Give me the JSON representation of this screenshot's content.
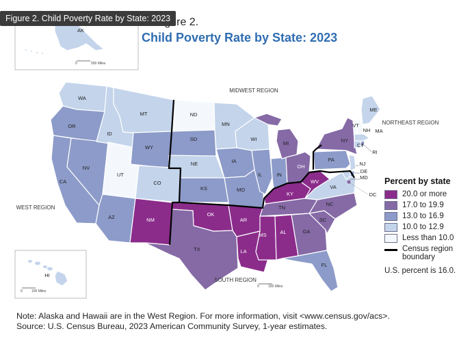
{
  "tooltip": "Figure 2. Child Poverty Rate by State: 2023",
  "figure_label": "Figure 2.",
  "title": "Child Poverty Rate by State: 2023",
  "colors": {
    "c20": "#8b2c8b",
    "c17": "#856aa6",
    "c13": "#8c9bc9",
    "c10": "#c3d4eb",
    "c0": "#f4f8fc",
    "boundary": "#000000",
    "title": "#2f6db1"
  },
  "legend": {
    "title": "Percent by state",
    "items": [
      {
        "label": "20.0 or more",
        "class": "c20"
      },
      {
        "label": "17.0 to 19.9",
        "class": "c17"
      },
      {
        "label": "13.0 to 16.9",
        "class": "c13"
      },
      {
        "label": "10.0 to 12.9",
        "class": "c10"
      },
      {
        "label": "Less than 10.0",
        "class": "c0"
      }
    ],
    "boundary_label": "Census region boundary",
    "us_percent": "U.S. percent is 16.0."
  },
  "regions": [
    "MIDWEST REGION",
    "NORTHEAST REGION",
    "WEST REGION",
    "SOUTH REGION"
  ],
  "states": [
    {
      "abbr": "WA",
      "class": "c10"
    },
    {
      "abbr": "OR",
      "class": "c13"
    },
    {
      "abbr": "CA",
      "class": "c13"
    },
    {
      "abbr": "NV",
      "class": "c13"
    },
    {
      "abbr": "ID",
      "class": "c10"
    },
    {
      "abbr": "MT",
      "class": "c10"
    },
    {
      "abbr": "WY",
      "class": "c13"
    },
    {
      "abbr": "UT",
      "class": "c0"
    },
    {
      "abbr": "CO",
      "class": "c10"
    },
    {
      "abbr": "AZ",
      "class": "c13"
    },
    {
      "abbr": "NM",
      "class": "c20"
    },
    {
      "abbr": "ND",
      "class": "c0"
    },
    {
      "abbr": "SD",
      "class": "c13"
    },
    {
      "abbr": "NE",
      "class": "c10"
    },
    {
      "abbr": "KS",
      "class": "c13"
    },
    {
      "abbr": "OK",
      "class": "c20"
    },
    {
      "abbr": "TX",
      "class": "c17"
    },
    {
      "abbr": "MN",
      "class": "c10"
    },
    {
      "abbr": "IA",
      "class": "c13"
    },
    {
      "abbr": "MO",
      "class": "c13"
    },
    {
      "abbr": "AR",
      "class": "c20"
    },
    {
      "abbr": "LA",
      "class": "c20"
    },
    {
      "abbr": "WI",
      "class": "c10"
    },
    {
      "abbr": "IL",
      "class": "c13"
    },
    {
      "abbr": "MI",
      "class": "c17"
    },
    {
      "abbr": "IN",
      "class": "c13"
    },
    {
      "abbr": "OH",
      "class": "c17"
    },
    {
      "abbr": "KY",
      "class": "c20"
    },
    {
      "abbr": "TN",
      "class": "c17"
    },
    {
      "abbr": "MS",
      "class": "c20"
    },
    {
      "abbr": "AL",
      "class": "c20"
    },
    {
      "abbr": "GA",
      "class": "c17"
    },
    {
      "abbr": "FL",
      "class": "c13"
    },
    {
      "abbr": "SC",
      "class": "c17"
    },
    {
      "abbr": "NC",
      "class": "c17"
    },
    {
      "abbr": "VA",
      "class": "c10"
    },
    {
      "abbr": "WV",
      "class": "c20"
    },
    {
      "abbr": "PA",
      "class": "c13"
    },
    {
      "abbr": "NY",
      "class": "c17"
    },
    {
      "abbr": "NJ",
      "class": "c10"
    },
    {
      "abbr": "DE",
      "class": "c13"
    },
    {
      "abbr": "MD",
      "class": "c10"
    },
    {
      "abbr": "DC",
      "class": "c17"
    },
    {
      "abbr": "CT",
      "class": "c10"
    },
    {
      "abbr": "RI",
      "class": "c13"
    },
    {
      "abbr": "MA",
      "class": "c10"
    },
    {
      "abbr": "VT",
      "class": "c0"
    },
    {
      "abbr": "NH",
      "class": "c0"
    },
    {
      "abbr": "ME",
      "class": "c10"
    },
    {
      "abbr": "AK",
      "class": "c10"
    },
    {
      "abbr": "HI",
      "class": "c10"
    }
  ],
  "scales": {
    "alaska": {
      "zero": "0",
      "distance": "500 Miles"
    },
    "hawaii": {
      "zero": "0",
      "distance": "100 Miles"
    },
    "south": {
      "zero": "0",
      "distance": "100 Miles"
    }
  },
  "notes": {
    "line1": "Note: Alaska and Hawaii are in the West Region. For more information, visit <www.census.gov/acs>.",
    "line2": "Source: U.S. Census Bureau, 2023 American Community Survey, 1-year estimates."
  }
}
